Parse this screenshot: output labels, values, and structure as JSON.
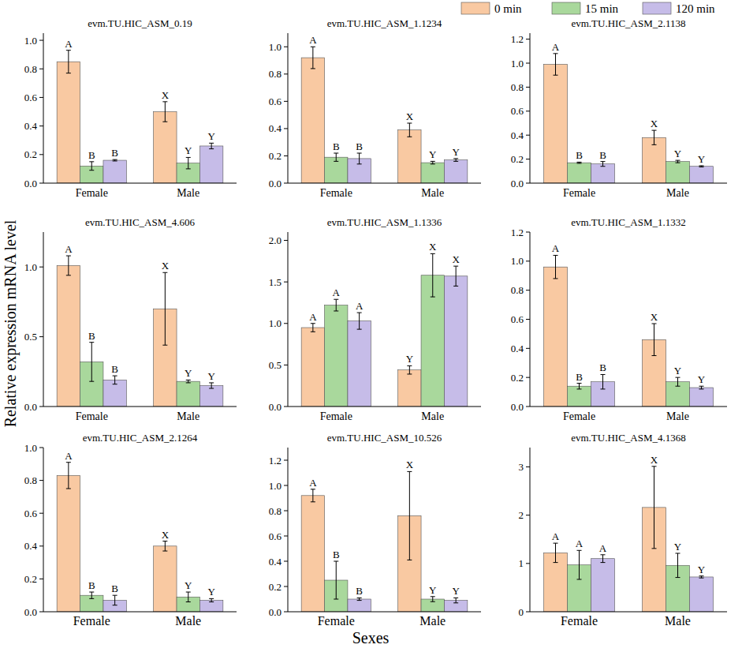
{
  "y_label": "Relative expression mRNA level",
  "x_label": "Sexes",
  "chart_data": [
    {
      "type": "bar",
      "title": "evm.TU.HIC_ASM_0.19",
      "categories": [
        "Female",
        "Male"
      ],
      "ylim": [
        0,
        1.05
      ],
      "yticks": [
        {
          "value": 0,
          "label": "0.0"
        },
        {
          "value": 0.2,
          "label": "0.2"
        },
        {
          "value": 0.4,
          "label": "0.4"
        },
        {
          "value": 0.6,
          "label": "0.6"
        },
        {
          "value": 0.8,
          "label": "0.8"
        },
        {
          "value": 1.0,
          "label": "1.0"
        }
      ],
      "series": [
        {
          "name": "0 min",
          "color": "#f9c9a2",
          "values": [
            0.85,
            0.5
          ],
          "errors": [
            0.08,
            0.07
          ],
          "letters": [
            "A",
            "X"
          ]
        },
        {
          "name": "15 min",
          "color": "#a9d89c",
          "values": [
            0.12,
            0.14
          ],
          "errors": [
            0.03,
            0.04
          ],
          "letters": [
            "B",
            "Y"
          ]
        },
        {
          "name": "120 min",
          "color": "#c6bce8",
          "values": [
            0.16,
            0.26
          ],
          "errors": [
            0.005,
            0.02
          ],
          "letters": [
            "B",
            "Y"
          ]
        }
      ]
    },
    {
      "type": "bar",
      "title": "evm.TU.HIC_ASM_1.1234",
      "categories": [
        "Female",
        "Male"
      ],
      "ylim": [
        0,
        1.1
      ],
      "yticks": [
        {
          "value": 0,
          "label": "0.0"
        },
        {
          "value": 0.2,
          "label": "0.2"
        },
        {
          "value": 0.4,
          "label": "0.4"
        },
        {
          "value": 0.6,
          "label": "0.6"
        },
        {
          "value": 0.8,
          "label": "0.8"
        },
        {
          "value": 1.0,
          "label": "1.0"
        }
      ],
      "series": [
        {
          "name": "0 min",
          "color": "#f9c9a2",
          "values": [
            0.92,
            0.39
          ],
          "errors": [
            0.08,
            0.05
          ],
          "letters": [
            "A",
            "X"
          ]
        },
        {
          "name": "15 min",
          "color": "#a9d89c",
          "values": [
            0.19,
            0.15
          ],
          "errors": [
            0.03,
            0.01
          ],
          "letters": [
            "B",
            "Y"
          ]
        },
        {
          "name": "120 min",
          "color": "#c6bce8",
          "values": [
            0.18,
            0.17
          ],
          "errors": [
            0.04,
            0.01
          ],
          "letters": [
            "B",
            "Y"
          ]
        }
      ]
    },
    {
      "type": "bar",
      "title": "evm.TU.HIC_ASM_2.1138",
      "categories": [
        "Female",
        "Male"
      ],
      "ylim": [
        0,
        1.25
      ],
      "yticks": [
        {
          "value": 0,
          "label": "0.0"
        },
        {
          "value": 0.2,
          "label": "0.2"
        },
        {
          "value": 0.4,
          "label": "0.4"
        },
        {
          "value": 0.6,
          "label": "0.6"
        },
        {
          "value": 0.8,
          "label": "0.8"
        },
        {
          "value": 1.0,
          "label": "1.0"
        },
        {
          "value": 1.2,
          "label": "1.2"
        }
      ],
      "series": [
        {
          "name": "0 min",
          "color": "#f9c9a2",
          "values": [
            0.99,
            0.38
          ],
          "errors": [
            0.09,
            0.06
          ],
          "letters": [
            "A",
            "X"
          ]
        },
        {
          "name": "15 min",
          "color": "#a9d89c",
          "values": [
            0.17,
            0.18
          ],
          "errors": [
            0.005,
            0.01
          ],
          "letters": [
            "B",
            "Y"
          ]
        },
        {
          "name": "120 min",
          "color": "#c6bce8",
          "values": [
            0.16,
            0.14
          ],
          "errors": [
            0.02,
            0.005
          ],
          "letters": [
            "B",
            "Y"
          ]
        }
      ]
    },
    {
      "type": "bar",
      "title": "evm.TU.HIC_ASM_4.606",
      "categories": [
        "Female",
        "Male"
      ],
      "ylim": [
        0,
        1.25
      ],
      "yticks": [
        {
          "value": 0,
          "label": "0.0"
        },
        {
          "value": 0.5,
          "label": "0.5"
        },
        {
          "value": 1.0,
          "label": "1.0"
        }
      ],
      "series": [
        {
          "name": "0 min",
          "color": "#f9c9a2",
          "values": [
            1.01,
            0.7
          ],
          "errors": [
            0.07,
            0.26
          ],
          "letters": [
            "A",
            "X"
          ]
        },
        {
          "name": "15 min",
          "color": "#a9d89c",
          "values": [
            0.32,
            0.18
          ],
          "errors": [
            0.14,
            0.01
          ],
          "letters": [
            "B",
            "Y"
          ]
        },
        {
          "name": "120 min",
          "color": "#c6bce8",
          "values": [
            0.19,
            0.15
          ],
          "errors": [
            0.03,
            0.02
          ],
          "letters": [
            "B",
            "Y"
          ]
        }
      ]
    },
    {
      "type": "bar",
      "title": "evm.TU.HIC_ASM_1.1336",
      "categories": [
        "Female",
        "Male"
      ],
      "ylim": [
        0,
        2.1
      ],
      "yticks": [
        {
          "value": 0,
          "label": "0.0"
        },
        {
          "value": 0.5,
          "label": "0.5"
        },
        {
          "value": 1.0,
          "label": "1.0"
        },
        {
          "value": 1.5,
          "label": "1.5"
        },
        {
          "value": 2.0,
          "label": "2.0"
        }
      ],
      "series": [
        {
          "name": "0 min",
          "color": "#f9c9a2",
          "values": [
            0.95,
            0.44
          ],
          "errors": [
            0.05,
            0.05
          ],
          "letters": [
            "A",
            "Y"
          ]
        },
        {
          "name": "15 min",
          "color": "#a9d89c",
          "values": [
            1.22,
            1.58
          ],
          "errors": [
            0.07,
            0.26
          ],
          "letters": [
            "A",
            "X"
          ]
        },
        {
          "name": "120 min",
          "color": "#c6bce8",
          "values": [
            1.03,
            1.57
          ],
          "errors": [
            0.1,
            0.12
          ],
          "letters": [
            "A",
            "X"
          ]
        }
      ]
    },
    {
      "type": "bar",
      "title": "evm.TU.HIC_ASM_1.1332",
      "categories": [
        "Female",
        "Male"
      ],
      "ylim": [
        0,
        1.2
      ],
      "yticks": [
        {
          "value": 0,
          "label": "0.0"
        },
        {
          "value": 0.2,
          "label": "0.2"
        },
        {
          "value": 0.4,
          "label": "0.4"
        },
        {
          "value": 0.6,
          "label": "0.6"
        },
        {
          "value": 0.8,
          "label": "0.8"
        },
        {
          "value": 1.0,
          "label": "1.0"
        },
        {
          "value": 1.2,
          "label": "1.2"
        }
      ],
      "series": [
        {
          "name": "0 min",
          "color": "#f9c9a2",
          "values": [
            0.96,
            0.46
          ],
          "errors": [
            0.08,
            0.11
          ],
          "letters": [
            "A",
            "X"
          ]
        },
        {
          "name": "15 min",
          "color": "#a9d89c",
          "values": [
            0.14,
            0.17
          ],
          "errors": [
            0.02,
            0.03
          ],
          "letters": [
            "B",
            "Y"
          ]
        },
        {
          "name": "120 min",
          "color": "#c6bce8",
          "values": [
            0.17,
            0.13
          ],
          "errors": [
            0.05,
            0.01
          ],
          "letters": [
            "B",
            "Y"
          ]
        }
      ]
    },
    {
      "type": "bar",
      "title": "evm.TU.HIC_ASM_2.1264",
      "categories": [
        "Female",
        "Male"
      ],
      "ylim": [
        0,
        1.0
      ],
      "yticks": [
        {
          "value": 0,
          "label": "0.0"
        },
        {
          "value": 0.2,
          "label": "0.2"
        },
        {
          "value": 0.4,
          "label": "0.4"
        },
        {
          "value": 0.6,
          "label": "0.6"
        },
        {
          "value": 0.8,
          "label": "0.8"
        },
        {
          "value": 1.0,
          "label": "1.0"
        }
      ],
      "series": [
        {
          "name": "0 min",
          "color": "#f9c9a2",
          "values": [
            0.83,
            0.4
          ],
          "errors": [
            0.08,
            0.03
          ],
          "letters": [
            "A",
            "X"
          ]
        },
        {
          "name": "15 min",
          "color": "#a9d89c",
          "values": [
            0.1,
            0.09
          ],
          "errors": [
            0.02,
            0.03
          ],
          "letters": [
            "B",
            "Y"
          ]
        },
        {
          "name": "120 min",
          "color": "#c6bce8",
          "values": [
            0.07,
            0.07
          ],
          "errors": [
            0.03,
            0.01
          ],
          "letters": [
            "B",
            "Y"
          ]
        }
      ]
    },
    {
      "type": "bar",
      "title": "evm.TU.HIC_ASM_10.526",
      "categories": [
        "Female",
        "Male"
      ],
      "ylim": [
        0,
        1.3
      ],
      "yticks": [
        {
          "value": 0,
          "label": "0.0"
        },
        {
          "value": 0.2,
          "label": "0.2"
        },
        {
          "value": 0.4,
          "label": "0.4"
        },
        {
          "value": 0.6,
          "label": "0.6"
        },
        {
          "value": 0.8,
          "label": "0.8"
        },
        {
          "value": 1.0,
          "label": "1.0"
        },
        {
          "value": 1.2,
          "label": "1.2"
        }
      ],
      "series": [
        {
          "name": "0 min",
          "color": "#f9c9a2",
          "values": [
            0.92,
            0.76
          ],
          "errors": [
            0.05,
            0.35
          ],
          "letters": [
            "A",
            "X"
          ]
        },
        {
          "name": "15 min",
          "color": "#a9d89c",
          "values": [
            0.25,
            0.1
          ],
          "errors": [
            0.15,
            0.02
          ],
          "letters": [
            "B",
            "Y"
          ]
        },
        {
          "name": "120 min",
          "color": "#c6bce8",
          "values": [
            0.1,
            0.09
          ],
          "errors": [
            0.01,
            0.02
          ],
          "letters": [
            "B",
            "Y"
          ]
        }
      ]
    },
    {
      "type": "bar",
      "title": "evm.TU.HIC_ASM_4.1368",
      "categories": [
        "Female",
        "Male"
      ],
      "ylim": [
        0,
        3.4
      ],
      "yticks": [
        0,
        1,
        2,
        3
      ],
      "series": [
        {
          "name": "0 min",
          "color": "#f9c9a2",
          "values": [
            1.22,
            2.16
          ],
          "errors": [
            0.2,
            0.85
          ],
          "letters": [
            "A",
            "X"
          ]
        },
        {
          "name": "15 min",
          "color": "#a9d89c",
          "values": [
            0.97,
            0.96
          ],
          "errors": [
            0.3,
            0.25
          ],
          "letters": [
            "A",
            "Y"
          ]
        },
        {
          "name": "120 min",
          "color": "#c6bce8",
          "values": [
            1.1,
            0.72
          ],
          "errors": [
            0.08,
            0.02
          ],
          "letters": [
            "A",
            "Y"
          ]
        }
      ]
    }
  ]
}
